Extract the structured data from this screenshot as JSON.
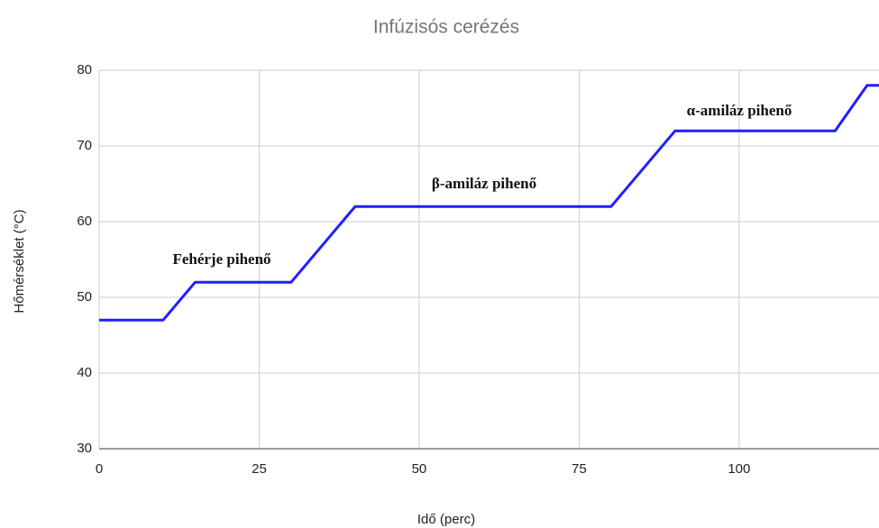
{
  "chart_data": {
    "type": "line",
    "title": "Infúzisós cerézés",
    "x_label": "Idő (perc)",
    "y_label": "Hőmérséklet (°C)",
    "x": [
      0,
      10,
      15,
      30,
      40,
      80,
      90,
      115,
      120,
      122
    ],
    "series": [
      {
        "name": "Hőmérséklet",
        "color": "#1f1fff",
        "values": [
          47,
          47,
          52,
          52,
          62,
          62,
          72,
          72,
          78,
          78
        ]
      }
    ],
    "xlim": [
      0,
      122
    ],
    "xticks": [
      0,
      25,
      50,
      75,
      100
    ],
    "ylim": [
      30,
      80
    ],
    "yticks": [
      30,
      40,
      50,
      60,
      70,
      80
    ],
    "grid": true,
    "annotations": [
      "Fehérje pihenő",
      "β-amiláz pihenő",
      "α-amiláz pihenő"
    ]
  }
}
